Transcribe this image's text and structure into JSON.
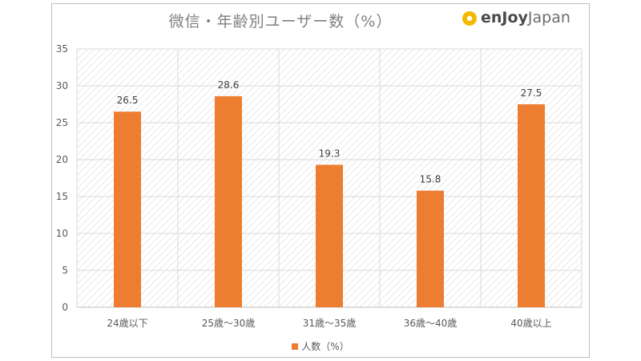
{
  "chart_data": {
    "type": "bar",
    "title": "微信・年齢別ユーザー数（%）",
    "categories": [
      "24歳以下",
      "25歳〜30歳",
      "31歳〜35歳",
      "36歳〜40歳",
      "40歳以上"
    ],
    "series": [
      {
        "name": "人数（%）",
        "values": [
          26.5,
          28.6,
          19.3,
          15.8,
          27.5
        ]
      }
    ],
    "data_labels": [
      "26.5",
      "28.6",
      "19.3",
      "15.8",
      "27.5"
    ],
    "y_ticks": [
      "0",
      "5",
      "10",
      "15",
      "20",
      "25",
      "30",
      "35"
    ],
    "ylim": [
      0,
      35
    ],
    "grid": true,
    "legend_position": "bottom",
    "bar_color": "#ed7d31"
  },
  "logo": {
    "part1": "enJoy",
    "part2": "Japan"
  }
}
